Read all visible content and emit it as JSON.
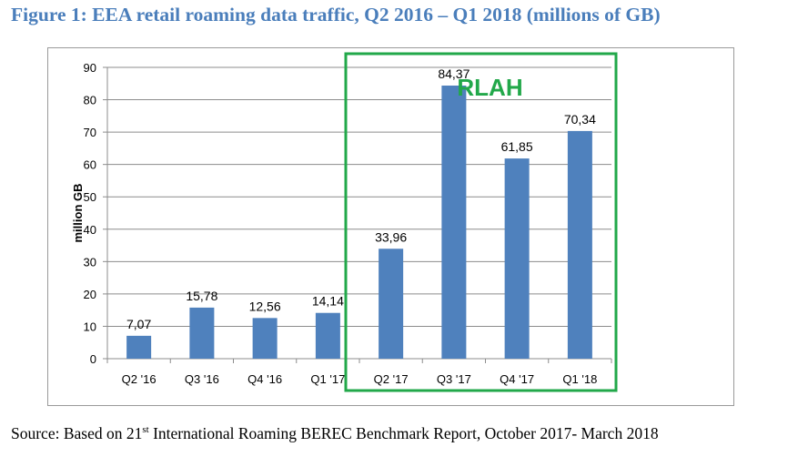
{
  "figure": {
    "title": "Figure 1: EEA retail roaming data traffic, Q2 2016 – Q1 2018 (millions of GB)"
  },
  "source": {
    "prefix": "Source: Based on 21",
    "ordinal_suffix": "st",
    "rest": " International Roaming BEREC Benchmark Report, October 2017- March 2018"
  },
  "chart_data": {
    "type": "bar",
    "title": "",
    "xlabel": "",
    "ylabel": "million GB",
    "ylim": [
      0,
      90
    ],
    "yticks": [
      0,
      10,
      20,
      30,
      40,
      50,
      60,
      70,
      80,
      90
    ],
    "grid": true,
    "categories": [
      "Q2 '16",
      "Q3 '16",
      "Q4 '16",
      "Q1 '17",
      "Q2 '17",
      "Q3 '17",
      "Q4 '17",
      "Q1 '18"
    ],
    "values": [
      7.07,
      15.78,
      12.56,
      14.14,
      33.96,
      84.37,
      61.85,
      70.34
    ],
    "value_labels": [
      "7,07",
      "15,78",
      "12,56",
      "14,14",
      "33,96",
      "84,37",
      "61,85",
      "70,34"
    ],
    "bar_color": "#4f81bd",
    "annotation": {
      "text": "RLAH",
      "color": "#22a84a",
      "highlight_from_category": "Q2 '17",
      "highlight_to_category": "Q1 '18"
    }
  }
}
